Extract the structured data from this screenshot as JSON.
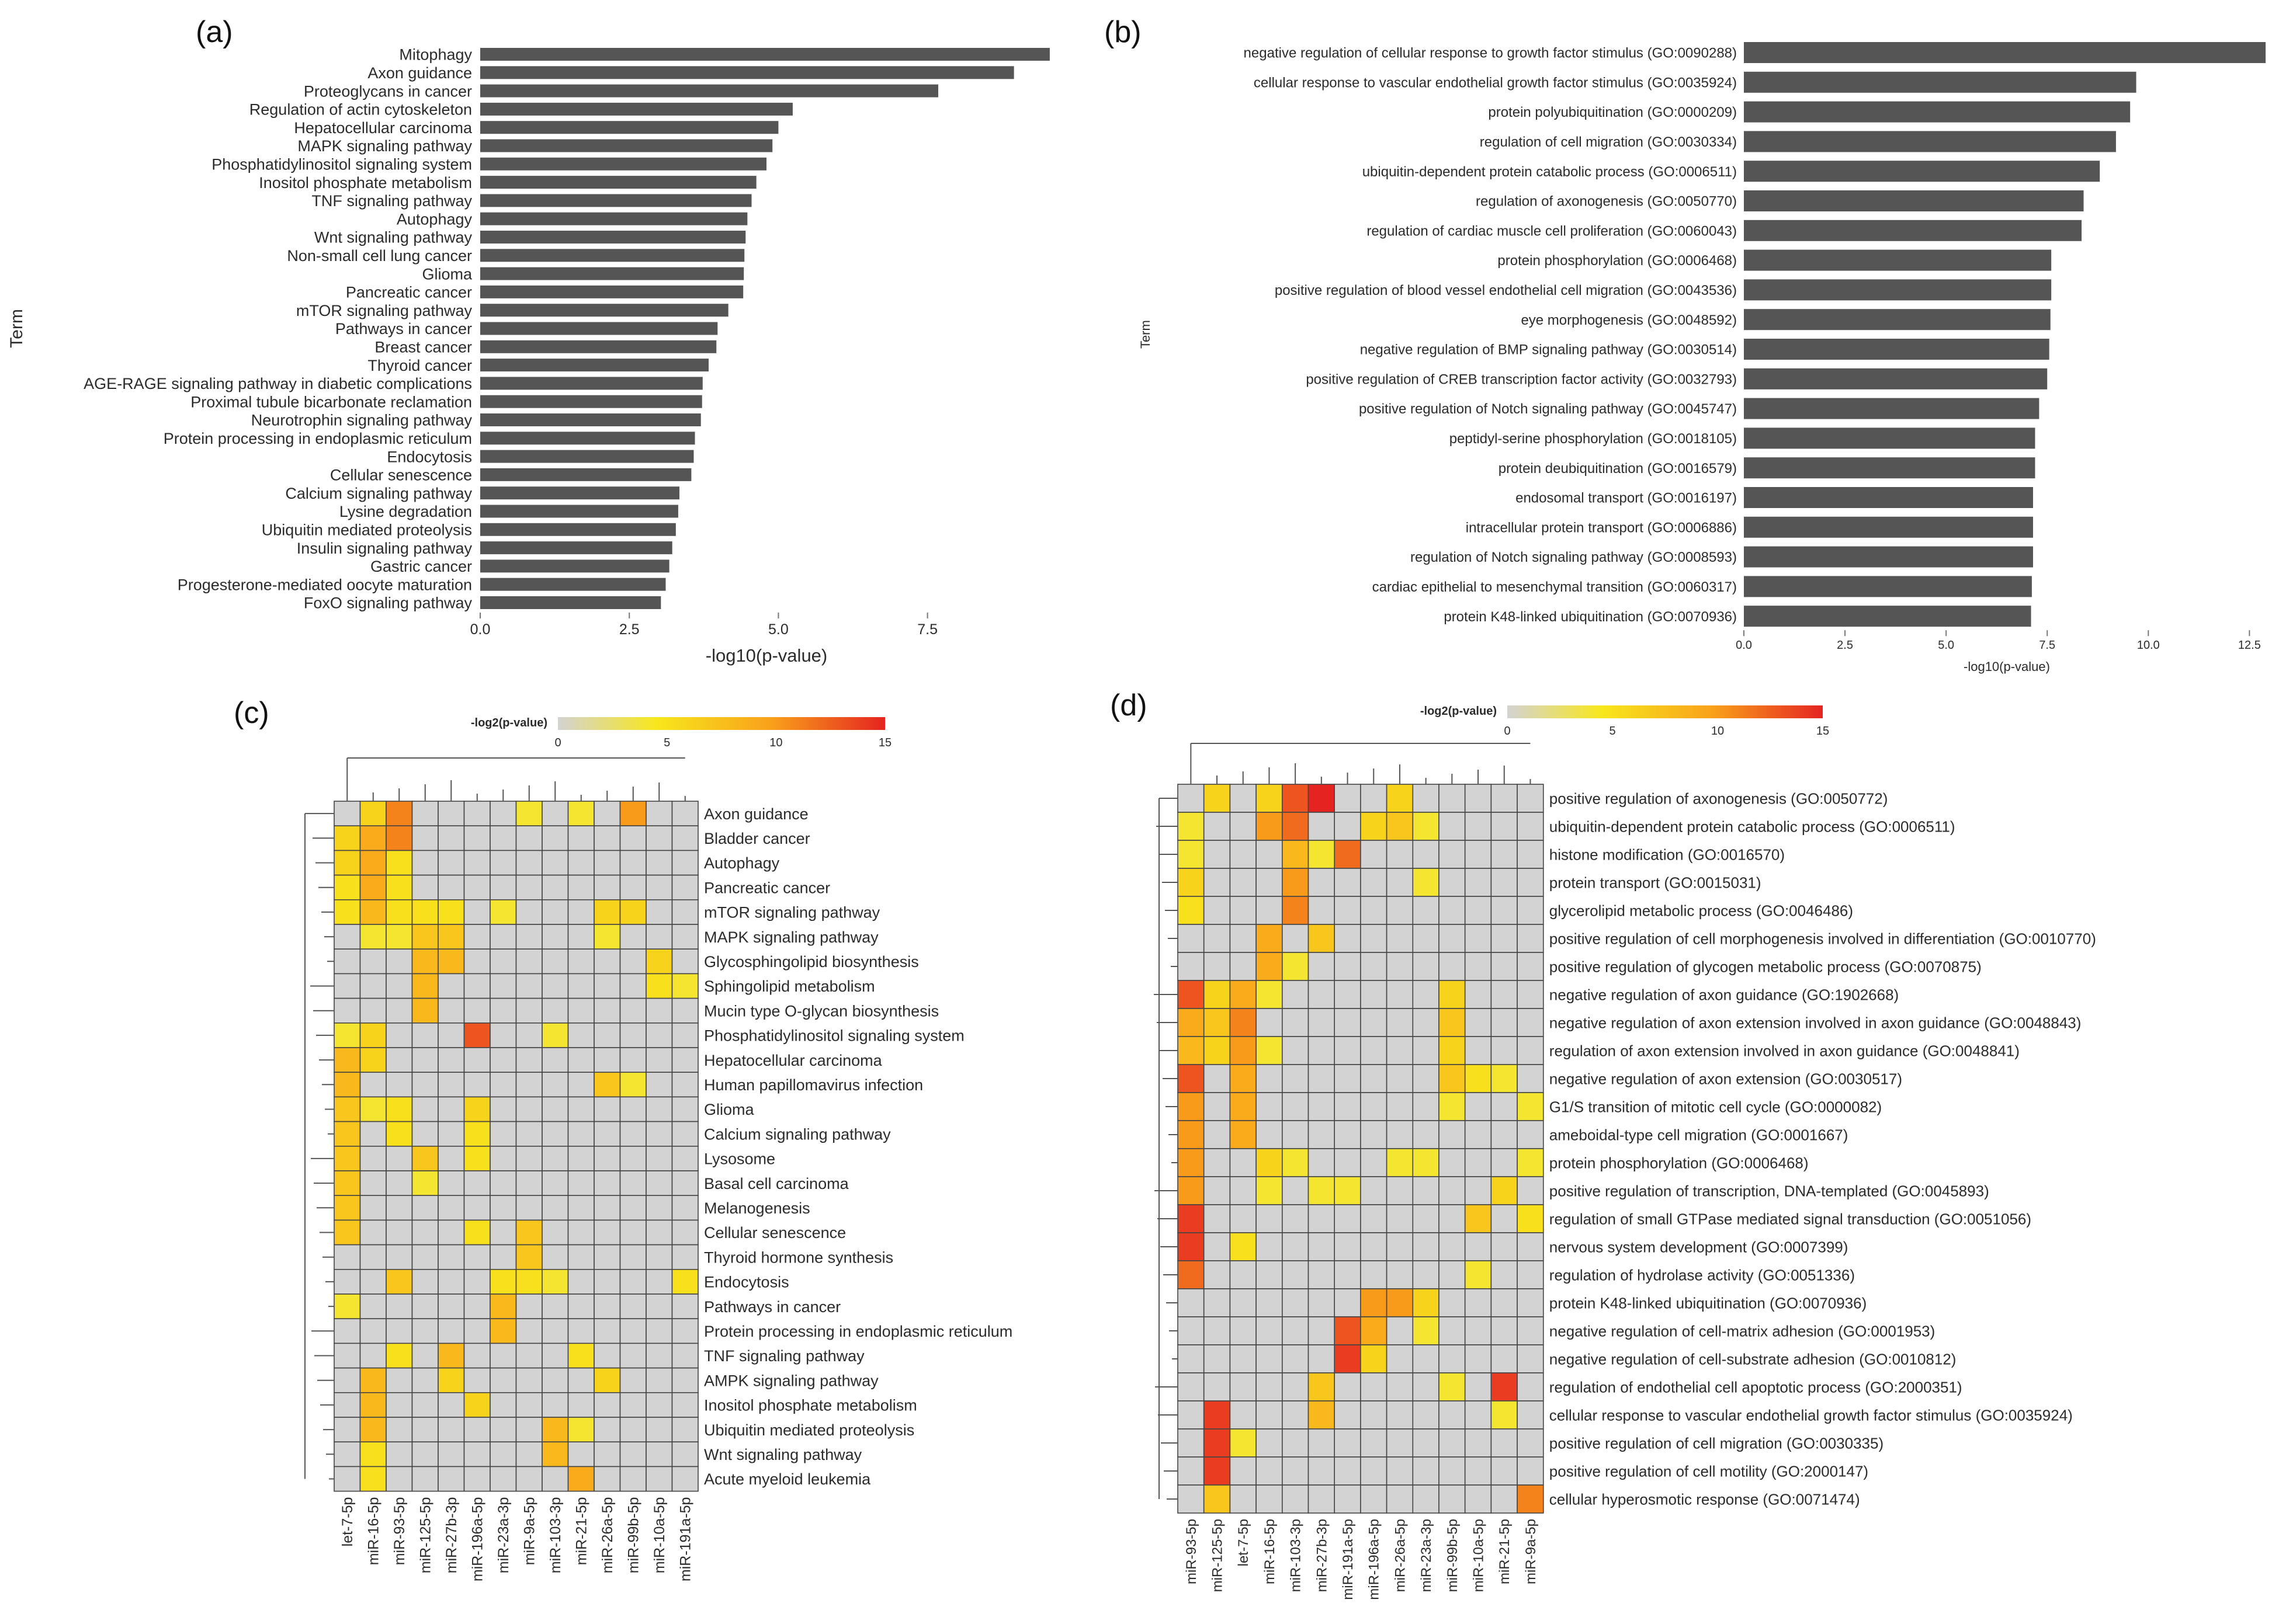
{
  "panels": {
    "a": {
      "label": "(a)"
    },
    "b": {
      "label": "(b)"
    },
    "c": {
      "label": "(c)"
    },
    "d": {
      "label": "(d)"
    }
  },
  "colors": {
    "bar": "#555555",
    "heat_low": "#d3d3d3",
    "heat_mid1": "#f8e71c",
    "heat_mid2": "#f9a11b",
    "heat_high": "#e52421",
    "cell_border": "#444444"
  },
  "chart_data": [
    {
      "id": "a",
      "type": "bar",
      "orientation": "horizontal",
      "title": "",
      "xlabel": "-log10(p-value)",
      "ylabel": "Term",
      "xlim": [
        0,
        9.6
      ],
      "xticks": [
        "0.0",
        "2.5",
        "5.0",
        "7.5"
      ],
      "categories": [
        "Mitophagy",
        "Axon guidance",
        "Proteoglycans in cancer",
        "Regulation of actin cytoskeleton",
        "Hepatocellular carcinoma",
        "MAPK signaling pathway",
        "Phosphatidylinositol signaling system",
        "Inositol phosphate metabolism",
        "TNF signaling pathway",
        "Autophagy",
        "Wnt signaling pathway",
        "Non-small cell lung cancer",
        "Glioma",
        "Pancreatic cancer",
        "mTOR signaling pathway",
        "Pathways in cancer",
        "Breast cancer",
        "Thyroid cancer",
        "AGE-RAGE signaling pathway in diabetic complications",
        "Proximal tubule bicarbonate reclamation",
        "Neurotrophin signaling pathway",
        "Protein processing in endoplasmic reticulum",
        "Endocytosis",
        "Cellular senescence",
        "Calcium signaling pathway",
        "Lysine degradation",
        "Ubiquitin mediated proteolysis",
        "Insulin signaling pathway",
        "Gastric cancer",
        "Progesterone-mediated oocyte maturation",
        "FoxO signaling pathway"
      ],
      "values": [
        9.55,
        8.95,
        7.68,
        5.24,
        5.0,
        4.9,
        4.8,
        4.63,
        4.55,
        4.48,
        4.45,
        4.43,
        4.42,
        4.41,
        4.16,
        3.98,
        3.96,
        3.83,
        3.73,
        3.72,
        3.7,
        3.6,
        3.58,
        3.54,
        3.34,
        3.32,
        3.28,
        3.22,
        3.17,
        3.11,
        3.03
      ]
    },
    {
      "id": "b",
      "type": "bar",
      "orientation": "horizontal",
      "title": "",
      "xlabel": "-log10(p-value)",
      "ylabel": "Term",
      "xlim": [
        0,
        13.0
      ],
      "xticks": [
        "0.0",
        "2.5",
        "5.0",
        "7.5",
        "10.0",
        "12.5"
      ],
      "categories": [
        "negative regulation of cellular response to growth factor stimulus (GO:0090288)",
        "cellular response to vascular endothelial growth factor stimulus (GO:0035924)",
        "protein polyubiquitination (GO:0000209)",
        "regulation of cell migration (GO:0030334)",
        "ubiquitin-dependent protein catabolic process (GO:0006511)",
        "regulation of axonogenesis (GO:0050770)",
        "regulation of cardiac muscle cell proliferation (GO:0060043)",
        "protein phosphorylation (GO:0006468)",
        "positive regulation of blood vessel endothelial cell migration (GO:0043536)",
        "eye morphogenesis (GO:0048592)",
        "negative regulation of BMP signaling pathway (GO:0030514)",
        "positive regulation of CREB transcription factor activity (GO:0032793)",
        "positive regulation of Notch signaling pathway (GO:0045747)",
        "peptidyl-serine phosphorylation (GO:0018105)",
        "protein deubiquitination (GO:0016579)",
        "endosomal transport (GO:0016197)",
        "intracellular protein transport (GO:0006886)",
        "regulation of Notch signaling pathway (GO:0008593)",
        "cardiac epithelial to mesenchymal transition (GO:0060317)",
        "protein K48-linked ubiquitination (GO:0070936)"
      ],
      "values": [
        12.9,
        9.7,
        9.55,
        9.2,
        8.8,
        8.4,
        8.35,
        7.6,
        7.6,
        7.58,
        7.55,
        7.5,
        7.3,
        7.2,
        7.2,
        7.15,
        7.15,
        7.15,
        7.12,
        7.1
      ]
    },
    {
      "id": "c",
      "type": "heatmap",
      "title": "",
      "legend_title": "-log2(p-value)",
      "color_range": [
        0,
        15
      ],
      "legend_ticks": [
        "0",
        "5",
        "10",
        "15"
      ],
      "columns": [
        "let-7-5p",
        "miR-16-5p",
        "miR-93-5p",
        "miR-125-5p",
        "miR-27b-3p",
        "miR-196a-5p",
        "miR-23a-3p",
        "miR-9a-5p",
        "miR-103-3p",
        "miR-21-5p",
        "miR-26a-5p",
        "miR-99b-5p",
        "miR-10a-5p",
        "miR-191a-5p"
      ],
      "rows": [
        "Axon guidance",
        "Bladder cancer",
        "Autophagy",
        "Pancreatic cancer",
        "mTOR signaling pathway",
        "MAPK signaling pathway",
        "Glycosphingolipid biosynthesis",
        "Sphingolipid metabolism",
        "Mucin type O-glycan biosynthesis",
        "Phosphatidylinositol signaling system",
        "Hepatocellular carcinoma",
        "Human papillomavirus infection",
        "Glioma",
        "Calcium signaling pathway",
        "Lysosome",
        "Basal cell carcinoma",
        "Melanogenesis",
        "Cellular senescence",
        "Thyroid hormone synthesis",
        "Endocytosis",
        "Pathways in cancer",
        "Protein processing in endoplasmic reticulum",
        "TNF signaling pathway",
        "AMPK signaling pathway",
        "Inositol phosphate metabolism",
        "Ubiquitin mediated proteolysis",
        "Wnt signaling pathway",
        "Acute myeloid leukemia"
      ],
      "values": [
        [
          0,
          6,
          11,
          0,
          0,
          0,
          0,
          4,
          0,
          4,
          0,
          10,
          0,
          0
        ],
        [
          6,
          9,
          11,
          0,
          0,
          0,
          0,
          0,
          0,
          0,
          0,
          0,
          0,
          0
        ],
        [
          6,
          9,
          5,
          0,
          0,
          0,
          0,
          0,
          0,
          0,
          0,
          0,
          0,
          0
        ],
        [
          5,
          9,
          5,
          0,
          0,
          0,
          0,
          0,
          0,
          0,
          0,
          0,
          0,
          0
        ],
        [
          5,
          8,
          5,
          5,
          5,
          0,
          4,
          0,
          0,
          0,
          6,
          6,
          0,
          0
        ],
        [
          0,
          4,
          4,
          7,
          7,
          0,
          0,
          0,
          0,
          0,
          4,
          0,
          0,
          0
        ],
        [
          0,
          0,
          0,
          8,
          8,
          0,
          0,
          0,
          0,
          0,
          0,
          0,
          6,
          0
        ],
        [
          0,
          0,
          0,
          8,
          0,
          0,
          0,
          0,
          0,
          0,
          0,
          0,
          5,
          4
        ],
        [
          0,
          0,
          0,
          8,
          0,
          0,
          0,
          0,
          0,
          0,
          0,
          0,
          0,
          0
        ],
        [
          4,
          6,
          0,
          0,
          0,
          13,
          0,
          0,
          4,
          0,
          0,
          0,
          0,
          0
        ],
        [
          8,
          6,
          0,
          0,
          0,
          0,
          0,
          0,
          0,
          0,
          0,
          0,
          0,
          0
        ],
        [
          8,
          0,
          0,
          0,
          0,
          0,
          0,
          0,
          0,
          0,
          7,
          4,
          0,
          0
        ],
        [
          7,
          4,
          5,
          0,
          0,
          6,
          0,
          0,
          0,
          0,
          0,
          0,
          0,
          0
        ],
        [
          7,
          0,
          5,
          0,
          0,
          5,
          0,
          0,
          0,
          0,
          0,
          0,
          0,
          0
        ],
        [
          7,
          0,
          0,
          7,
          0,
          5,
          0,
          0,
          0,
          0,
          0,
          0,
          0,
          0
        ],
        [
          7,
          0,
          0,
          4,
          0,
          0,
          0,
          0,
          0,
          0,
          0,
          0,
          0,
          0
        ],
        [
          7,
          0,
          0,
          0,
          0,
          0,
          0,
          0,
          0,
          0,
          0,
          0,
          0,
          0
        ],
        [
          7,
          0,
          0,
          0,
          0,
          5,
          0,
          7,
          0,
          0,
          0,
          0,
          0,
          0
        ],
        [
          0,
          0,
          0,
          0,
          0,
          0,
          0,
          7,
          0,
          0,
          0,
          0,
          0,
          0
        ],
        [
          0,
          0,
          7,
          0,
          0,
          0,
          5,
          5,
          4,
          0,
          0,
          0,
          0,
          5
        ],
        [
          4,
          0,
          0,
          0,
          0,
          0,
          8,
          0,
          0,
          0,
          0,
          0,
          0,
          0
        ],
        [
          0,
          0,
          0,
          0,
          0,
          0,
          8,
          0,
          0,
          0,
          0,
          0,
          0,
          0
        ],
        [
          0,
          0,
          5,
          0,
          8,
          0,
          0,
          0,
          0,
          5,
          0,
          0,
          0,
          0
        ],
        [
          0,
          8,
          0,
          0,
          6,
          0,
          0,
          0,
          0,
          0,
          6,
          0,
          0,
          0
        ],
        [
          0,
          8,
          0,
          0,
          0,
          6,
          0,
          0,
          0,
          0,
          0,
          0,
          0,
          0
        ],
        [
          0,
          8,
          0,
          0,
          0,
          0,
          0,
          0,
          8,
          4,
          0,
          0,
          0,
          0
        ],
        [
          0,
          5,
          0,
          0,
          0,
          0,
          0,
          0,
          8,
          0,
          0,
          0,
          0,
          0
        ],
        [
          0,
          5,
          0,
          0,
          0,
          0,
          0,
          0,
          0,
          9,
          0,
          0,
          0,
          0
        ]
      ]
    },
    {
      "id": "d",
      "type": "heatmap",
      "title": "",
      "legend_title": "-log2(p-value)",
      "color_range": [
        0,
        15
      ],
      "legend_ticks": [
        "0",
        "5",
        "10",
        "15"
      ],
      "columns": [
        "miR-93-5p",
        "miR-125-5p",
        "let-7-5p",
        "miR-16-5p",
        "miR-103-3p",
        "miR-27b-3p",
        "miR-191a-5p",
        "miR-196a-5p",
        "miR-26a-5p",
        "miR-23a-3p",
        "miR-99b-5p",
        "miR-10a-5p",
        "miR-21-5p",
        "miR-9a-5p"
      ],
      "rows": [
        "positive regulation of axonogenesis (GO:0050772)",
        "ubiquitin-dependent protein catabolic process (GO:0006511)",
        "histone modification (GO:0016570)",
        "protein transport (GO:0015031)",
        "glycerolipid metabolic process (GO:0046486)",
        "positive regulation of cell morphogenesis involved in differentiation (GO:0010770)",
        "positive regulation of glycogen metabolic process (GO:0070875)",
        "negative regulation of axon guidance (GO:1902668)",
        "negative regulation of axon extension involved in axon guidance (GO:0048843)",
        "regulation of axon extension involved in axon guidance (GO:0048841)",
        "negative regulation of axon extension (GO:0030517)",
        "G1/S transition of mitotic cell cycle (GO:0000082)",
        "ameboidal-type cell migration (GO:0001667)",
        "protein phosphorylation (GO:0006468)",
        "positive regulation of transcription, DNA-templated (GO:0045893)",
        "regulation of small GTPase mediated signal transduction (GO:0051056)",
        "nervous system development (GO:0007399)",
        "regulation of hydrolase activity (GO:0051336)",
        "protein K48-linked ubiquitination (GO:0070936)",
        "negative regulation of cell-matrix adhesion (GO:0001953)",
        "negative regulation of cell-substrate adhesion (GO:0010812)",
        "regulation of endothelial cell apoptotic process (GO:2000351)",
        "cellular response to vascular endothelial growth factor stimulus (GO:0035924)",
        "positive regulation of cell migration (GO:0030335)",
        "positive regulation of cell motility (GO:2000147)",
        "cellular hyperosmotic response (GO:0071474)"
      ],
      "values": [
        [
          0,
          6,
          0,
          6,
          13,
          15,
          0,
          0,
          6,
          0,
          0,
          0,
          0,
          0
        ],
        [
          4,
          0,
          0,
          10,
          12,
          0,
          0,
          6,
          7,
          4,
          0,
          0,
          0,
          0
        ],
        [
          4,
          0,
          0,
          0,
          8,
          4,
          12,
          0,
          0,
          0,
          0,
          0,
          0,
          0
        ],
        [
          6,
          0,
          0,
          0,
          10,
          0,
          0,
          0,
          0,
          4,
          0,
          0,
          0,
          0
        ],
        [
          5,
          0,
          0,
          0,
          11,
          0,
          0,
          0,
          0,
          0,
          0,
          0,
          0,
          0
        ],
        [
          0,
          0,
          0,
          9,
          0,
          7,
          0,
          0,
          0,
          0,
          0,
          0,
          0,
          0
        ],
        [
          0,
          0,
          0,
          9,
          4,
          0,
          0,
          0,
          0,
          0,
          0,
          0,
          0,
          0
        ],
        [
          13,
          6,
          9,
          4,
          0,
          0,
          0,
          0,
          0,
          0,
          6,
          0,
          0,
          0
        ],
        [
          9,
          7,
          11,
          0,
          0,
          0,
          0,
          0,
          0,
          0,
          7,
          0,
          0,
          0
        ],
        [
          8,
          6,
          10,
          4,
          0,
          0,
          0,
          0,
          0,
          0,
          6,
          0,
          0,
          0
        ],
        [
          13,
          0,
          9,
          0,
          0,
          0,
          0,
          0,
          0,
          0,
          7,
          5,
          4,
          0
        ],
        [
          10,
          0,
          9,
          0,
          0,
          0,
          0,
          0,
          0,
          0,
          4,
          0,
          0,
          4
        ],
        [
          10,
          0,
          9,
          0,
          0,
          0,
          0,
          0,
          0,
          0,
          0,
          0,
          0,
          0
        ],
        [
          10,
          0,
          0,
          6,
          4,
          0,
          0,
          0,
          4,
          4,
          0,
          0,
          0,
          4
        ],
        [
          10,
          0,
          0,
          4,
          0,
          4,
          4,
          0,
          0,
          0,
          0,
          0,
          6,
          0
        ],
        [
          14,
          0,
          0,
          0,
          0,
          0,
          0,
          0,
          0,
          0,
          0,
          7,
          0,
          5
        ],
        [
          14,
          0,
          5,
          0,
          0,
          0,
          0,
          0,
          0,
          0,
          0,
          0,
          0,
          0
        ],
        [
          12,
          0,
          0,
          0,
          0,
          0,
          0,
          0,
          0,
          0,
          0,
          4,
          0,
          0
        ],
        [
          0,
          0,
          0,
          0,
          0,
          0,
          0,
          10,
          10,
          6,
          0,
          0,
          0,
          0
        ],
        [
          0,
          0,
          0,
          0,
          0,
          0,
          13,
          9,
          0,
          4,
          0,
          0,
          0,
          0
        ],
        [
          0,
          0,
          0,
          0,
          0,
          0,
          14,
          6,
          0,
          0,
          0,
          0,
          0,
          0
        ],
        [
          0,
          0,
          0,
          0,
          0,
          7,
          0,
          0,
          0,
          0,
          4,
          0,
          14,
          0
        ],
        [
          0,
          14,
          0,
          0,
          0,
          8,
          0,
          0,
          0,
          0,
          0,
          0,
          4,
          0
        ],
        [
          0,
          14,
          4,
          0,
          0,
          0,
          0,
          0,
          0,
          0,
          0,
          0,
          0,
          0
        ],
        [
          0,
          14,
          0,
          0,
          0,
          0,
          0,
          0,
          0,
          0,
          0,
          0,
          0,
          0
        ],
        [
          0,
          7,
          0,
          0,
          0,
          0,
          0,
          0,
          0,
          0,
          0,
          0,
          0,
          11
        ]
      ]
    }
  ]
}
